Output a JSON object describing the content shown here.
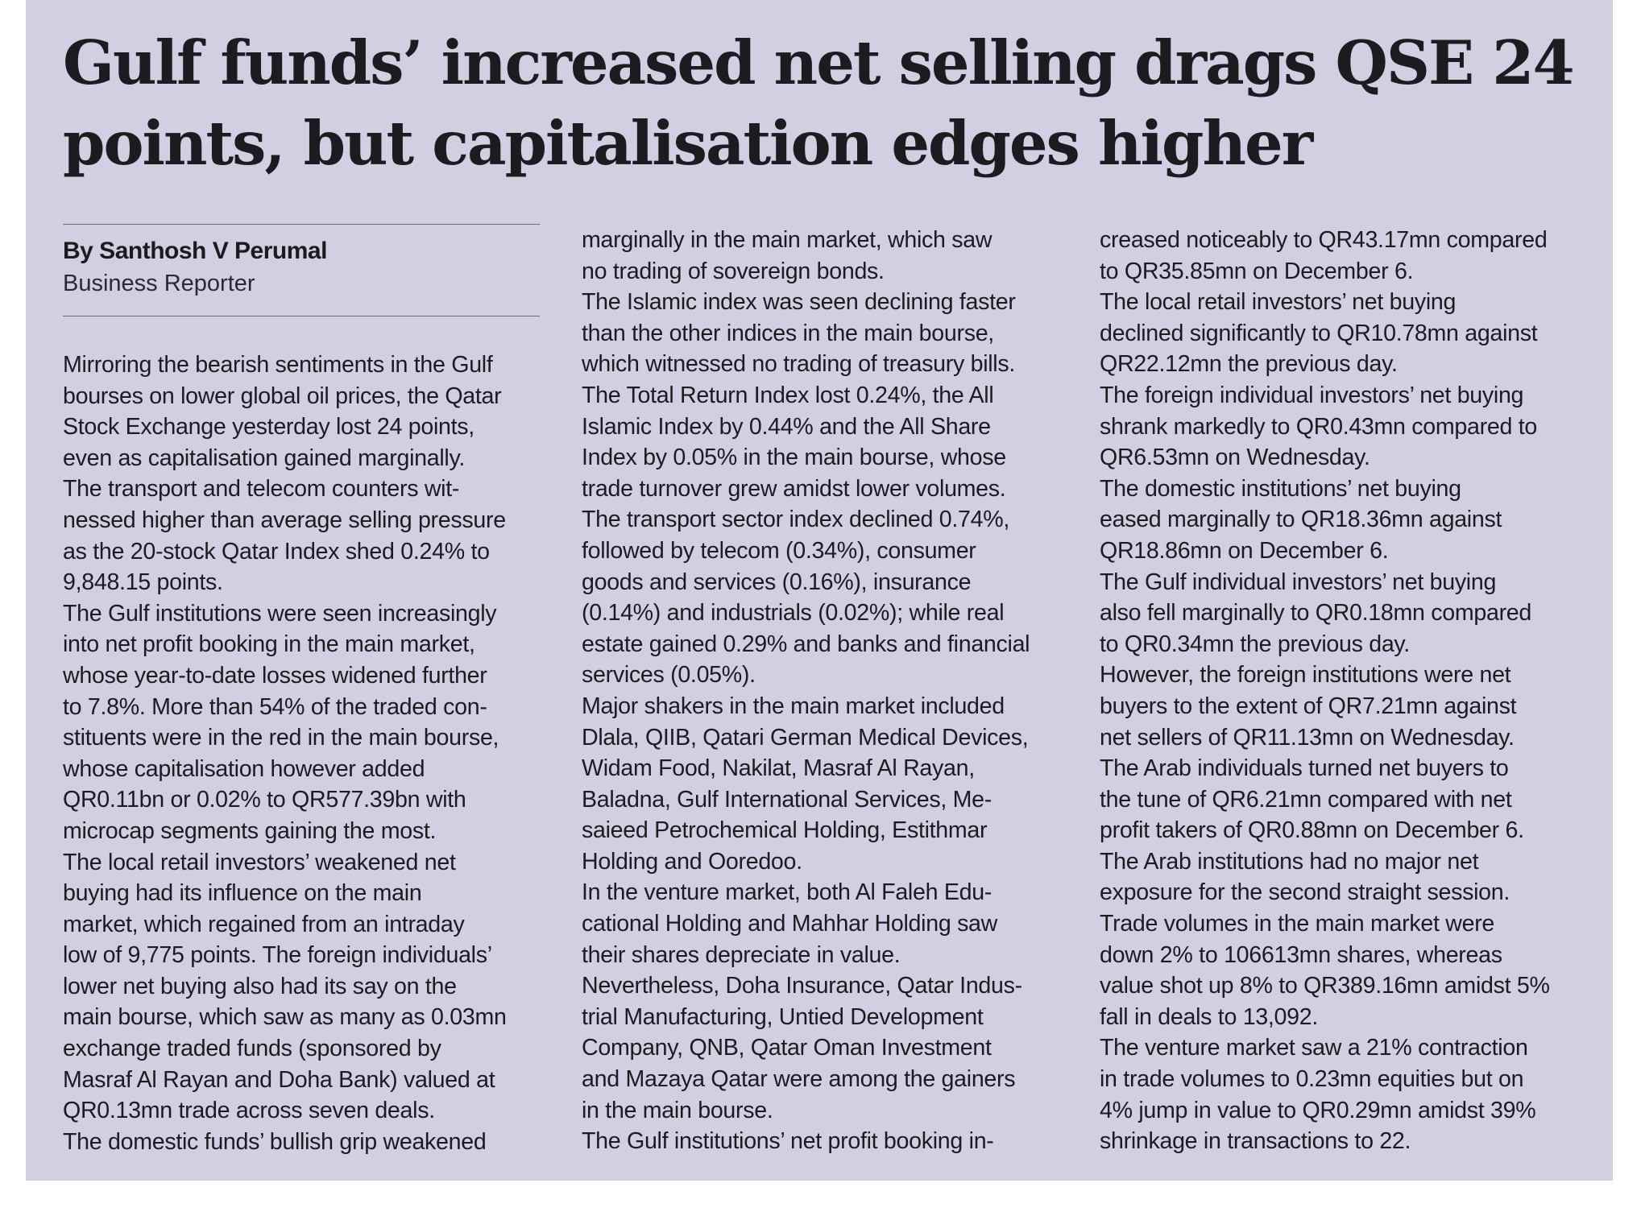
{
  "headline": [
    "Gulf funds’ increased net selling drags QSE 24",
    "points, but capitalisation edges higher"
  ],
  "byline": {
    "name": "By Santhosh V Perumal",
    "role": "Business Reporter"
  },
  "columns": [
    [
      "Mirroring the bearish sentiments in the Gulf",
      "bourses on lower global oil prices, the Qatar",
      "Stock Exchange yesterday lost 24 points,",
      "even as capitalisation gained marginally.",
      "The transport and telecom counters wit-",
      "nessed higher than average selling pressure",
      "as the 20-stock Qatar Index shed 0.24% to",
      "9,848.15 points.",
      "The Gulf institutions were seen increasingly",
      "into net profit booking in the main market,",
      "whose year-to-date losses widened further",
      "to 7.8%. More than 54% of the traded con-",
      "stituents were in the red in the main bourse,",
      "whose capitalisation however added",
      "QR0.11bn or 0.02% to QR577.39bn with",
      "microcap segments gaining the most.",
      "The local retail investors’ weakened net",
      "buying had its influence on the main",
      "market, which regained from an intraday",
      "low of 9,775 points. The foreign individuals’",
      "lower net buying also had its say on the",
      "main bourse, which saw as many as 0.03mn",
      "exchange traded funds (sponsored by",
      "Masraf Al Rayan and Doha Bank) valued at",
      "QR0.13mn trade across seven deals.",
      "The domestic funds’ bullish grip weakened"
    ],
    [
      "marginally in the main market, which saw",
      "no trading of sovereign bonds.",
      "The Islamic index was seen declining faster",
      "than the other indices in the main bourse,",
      "which witnessed no trading of treasury bills.",
      "The Total Return Index lost 0.24%, the All",
      "Islamic Index by 0.44% and the All Share",
      "Index by 0.05% in the main bourse, whose",
      "trade turnover grew amidst lower volumes.",
      "The transport sector index declined 0.74%,",
      "followed by telecom (0.34%), consumer",
      "goods and services (0.16%), insurance",
      "(0.14%) and industrials (0.02%); while real",
      "estate gained 0.29% and banks and financial",
      "services (0.05%).",
      "Major shakers in the main market included",
      "Dlala, QIIB, Qatari German Medical Devices,",
      "Widam Food, Nakilat, Masraf Al Rayan,",
      "Baladna, Gulf International Services, Me-",
      "saieed Petrochemical Holding, Estithmar",
      "Holding and Ooredoo.",
      "In the venture market, both Al Faleh Edu-",
      "cational Holding and Mahhar Holding saw",
      "their shares depreciate in value.",
      "Nevertheless, Doha Insurance, Qatar Indus-",
      "trial Manufacturing, Untied Development",
      "Company, QNB, Qatar Oman Investment",
      "and Mazaya Qatar were among the gainers",
      "in the main bourse.",
      "The Gulf institutions’ net profit booking in-"
    ],
    [
      "creased noticeably to QR43.17mn compared",
      "to QR35.85mn on December 6.",
      "The local retail investors’ net buying",
      "declined significantly to QR10.78mn against",
      "QR22.12mn the previous day.",
      "The foreign individual investors’ net buying",
      "shrank markedly to QR0.43mn compared to",
      "QR6.53mn on Wednesday.",
      "The domestic institutions’ net buying",
      "eased marginally to QR18.36mn against",
      "QR18.86mn on December 6.",
      "The Gulf individual investors’ net buying",
      "also fell marginally to QR0.18mn compared",
      "to QR0.34mn the previous day.",
      "However, the foreign institutions were net",
      "buyers to the extent of QR7.21mn against",
      "net sellers of QR11.13mn on Wednesday.",
      "The Arab individuals turned net buyers to",
      "the tune of QR6.21mn compared with net",
      "profit takers of QR0.88mn on December 6.",
      "The Arab institutions had no major net",
      "exposure for the second straight session.",
      "Trade volumes in the main market were",
      "down 2% to 106613mn shares, whereas",
      "value shot up 8% to QR389.16mn amidst 5%",
      "fall in deals to 13,092.",
      "The venture market saw a 21% contraction",
      "in trade volumes to 0.23mn equities but on",
      "4% jump in value to QR0.29mn amidst 39%",
      "shrinkage in transactions to 22."
    ]
  ]
}
